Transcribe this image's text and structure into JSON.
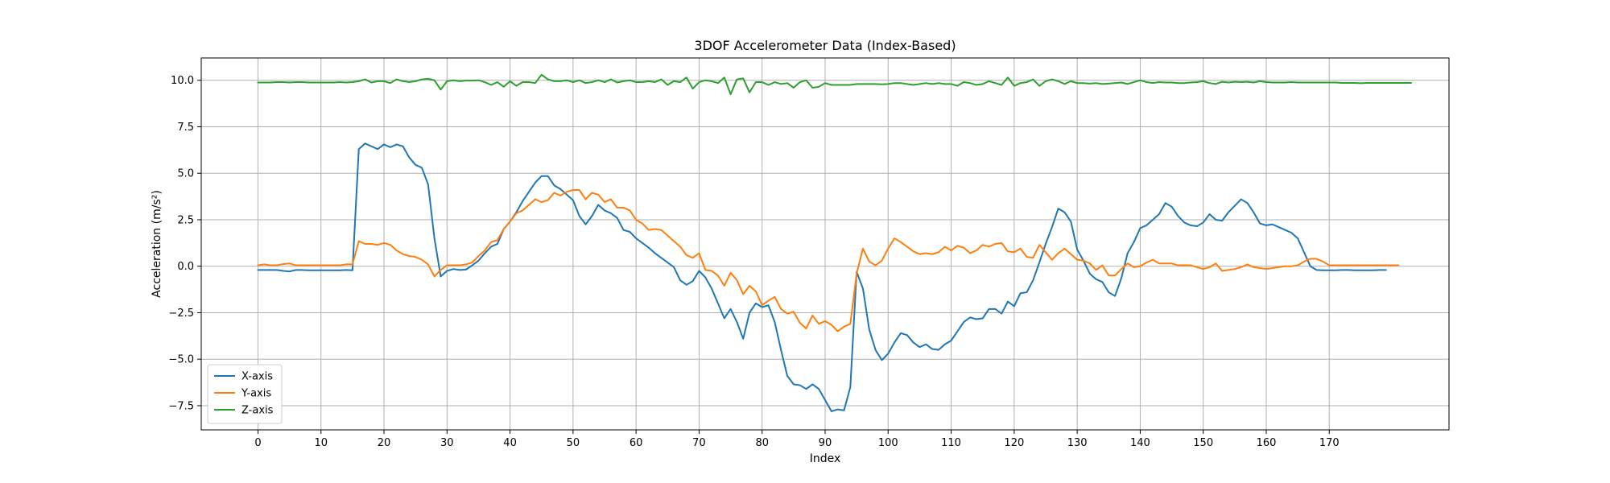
{
  "chart_data": {
    "type": "line",
    "title": "3DOF Accelerometer Data (Index-Based)",
    "xlabel": "Index",
    "ylabel": "Acceleration (m/s²)",
    "xlim": [
      -9,
      189
    ],
    "ylim": [
      -8.8,
      11.2
    ],
    "xticks": [
      0,
      10,
      20,
      30,
      40,
      50,
      60,
      70,
      80,
      90,
      100,
      110,
      120,
      130,
      140,
      150,
      160,
      170
    ],
    "yticks": [
      -7.5,
      -5.0,
      -2.5,
      0.0,
      2.5,
      5.0,
      7.5,
      10.0
    ],
    "ytick_labels": [
      "−7.5",
      "−5.0",
      "−2.5",
      "0.0",
      "2.5",
      "5.0",
      "7.5",
      "10.0"
    ],
    "grid": true,
    "legend_position": "lower-left",
    "series": [
      {
        "name": "X-axis",
        "color": "#1f77b4",
        "values": [
          -0.2,
          -0.2,
          -0.2,
          -0.2,
          -0.25,
          -0.28,
          -0.2,
          -0.2,
          -0.22,
          -0.22,
          -0.22,
          -0.22,
          -0.22,
          -0.22,
          -0.2,
          -0.22,
          6.3,
          6.6,
          6.45,
          6.3,
          6.55,
          6.4,
          6.55,
          6.45,
          5.85,
          5.45,
          5.3,
          4.4,
          1.5,
          -0.55,
          -0.25,
          -0.15,
          -0.2,
          -0.18,
          0.05,
          0.3,
          0.7,
          1.05,
          1.2,
          2.0,
          2.4,
          2.9,
          3.5,
          4.0,
          4.5,
          4.85,
          4.85,
          4.35,
          4.15,
          3.85,
          3.55,
          2.7,
          2.25,
          2.7,
          3.3,
          3.0,
          2.85,
          2.6,
          1.95,
          1.85,
          1.5,
          1.25,
          1.0,
          0.7,
          0.45,
          0.2,
          -0.05,
          -0.75,
          -1.0,
          -0.8,
          -0.25,
          -0.6,
          -1.2,
          -2.0,
          -2.8,
          -2.3,
          -3.0,
          -3.9,
          -2.5,
          -2.0,
          -2.2,
          -2.1,
          -3.0,
          -4.5,
          -5.9,
          -6.35,
          -6.4,
          -6.6,
          -6.35,
          -6.6,
          -7.2,
          -7.8,
          -7.7,
          -7.75,
          -6.5,
          -0.3,
          -1.2,
          -3.4,
          -4.5,
          -5.05,
          -4.7,
          -4.1,
          -3.6,
          -3.7,
          -4.1,
          -4.35,
          -4.2,
          -4.45,
          -4.5,
          -4.2,
          -4.0,
          -3.5,
          -3.0,
          -2.75,
          -2.85,
          -2.8,
          -2.3,
          -2.3,
          -2.55,
          -1.9,
          -2.15,
          -1.45,
          -1.4,
          -0.75,
          0.2,
          1.2,
          2.1,
          3.1,
          2.9,
          2.4,
          0.9,
          0.3,
          -0.4,
          -0.7,
          -0.85,
          -1.4,
          -1.6,
          -0.65,
          0.7,
          1.3,
          2.05,
          2.2,
          2.5,
          2.8,
          3.4,
          3.2,
          2.7,
          2.35,
          2.2,
          2.15,
          2.35,
          2.8,
          2.5,
          2.45,
          2.9,
          3.25,
          3.6,
          3.4,
          2.9,
          2.3,
          2.2,
          2.25,
          2.1,
          1.95,
          1.8,
          1.5,
          0.75,
          0.0,
          -0.2,
          -0.22,
          -0.22,
          -0.22,
          -0.2,
          -0.2,
          -0.22,
          -0.22,
          -0.22,
          -0.22,
          -0.2,
          -0.2
        ]
      },
      {
        "name": "Y-axis",
        "color": "#ff7f0e",
        "values": [
          0.05,
          0.1,
          0.05,
          0.05,
          0.12,
          0.15,
          0.05,
          0.05,
          0.05,
          0.05,
          0.05,
          0.05,
          0.05,
          0.05,
          0.1,
          0.1,
          1.35,
          1.2,
          1.2,
          1.15,
          1.25,
          1.15,
          0.85,
          0.65,
          0.55,
          0.5,
          0.35,
          0.1,
          -0.55,
          -0.2,
          0.05,
          0.05,
          0.05,
          0.1,
          0.2,
          0.55,
          0.85,
          1.3,
          1.4,
          2.0,
          2.4,
          2.85,
          3.0,
          3.3,
          3.6,
          3.45,
          3.55,
          3.95,
          3.8,
          4.0,
          4.1,
          4.1,
          3.6,
          3.95,
          3.85,
          3.45,
          3.6,
          3.15,
          3.15,
          3.0,
          2.5,
          2.3,
          1.95,
          2.0,
          1.95,
          1.65,
          1.35,
          1.05,
          0.6,
          0.45,
          0.7,
          -0.2,
          -0.25,
          -0.5,
          -1.05,
          -0.35,
          -0.75,
          -1.5,
          -1.05,
          -1.35,
          -2.1,
          -1.85,
          -1.65,
          -2.3,
          -2.55,
          -2.45,
          -3.05,
          -3.35,
          -2.65,
          -3.1,
          -2.95,
          -3.15,
          -3.5,
          -3.25,
          -3.1,
          -0.4,
          0.95,
          0.25,
          0.05,
          0.3,
          0.95,
          1.5,
          1.3,
          1.05,
          0.8,
          0.65,
          0.7,
          0.65,
          0.75,
          1.05,
          0.85,
          1.1,
          1.0,
          0.7,
          0.85,
          1.15,
          1.05,
          1.2,
          1.25,
          0.8,
          0.75,
          0.95,
          0.5,
          0.45,
          1.15,
          0.75,
          0.35,
          0.7,
          0.95,
          0.65,
          0.35,
          0.3,
          0.15,
          -0.2,
          0.05,
          -0.5,
          -0.5,
          -0.15,
          0.15,
          -0.05,
          0.0,
          0.2,
          0.35,
          0.15,
          0.15,
          0.15,
          0.05,
          0.05,
          0.05,
          -0.05,
          -0.15,
          -0.05,
          0.15,
          -0.25,
          -0.2,
          -0.15,
          -0.05,
          0.1,
          -0.05,
          -0.1,
          -0.15,
          -0.1,
          -0.05,
          0.0,
          0.0,
          0.05,
          0.25,
          0.4,
          0.4,
          0.25,
          0.05,
          0.05,
          0.05,
          0.05,
          0.05,
          0.05,
          0.05,
          0.05,
          0.05,
          0.05,
          0.05,
          0.05
        ]
      },
      {
        "name": "Z-axis",
        "color": "#2ca02c",
        "values": [
          9.88,
          9.88,
          9.88,
          9.9,
          9.9,
          9.88,
          9.9,
          9.9,
          9.88,
          9.88,
          9.88,
          9.88,
          9.88,
          9.9,
          9.88,
          9.9,
          9.95,
          10.05,
          9.88,
          9.95,
          9.95,
          9.85,
          10.05,
          9.95,
          9.9,
          9.95,
          10.05,
          10.08,
          10.0,
          9.5,
          9.95,
          10.0,
          9.95,
          9.98,
          9.98,
          10.0,
          9.9,
          9.75,
          9.9,
          9.65,
          9.95,
          9.7,
          9.9,
          9.9,
          9.85,
          10.3,
          10.05,
          9.95,
          9.95,
          10.0,
          9.9,
          10.0,
          9.85,
          9.9,
          10.0,
          9.9,
          10.05,
          9.88,
          9.95,
          10.0,
          9.9,
          9.9,
          9.95,
          9.9,
          10.05,
          9.75,
          9.95,
          9.9,
          10.15,
          9.55,
          9.9,
          10.0,
          9.95,
          9.85,
          10.15,
          9.25,
          10.05,
          10.1,
          9.35,
          9.9,
          9.9,
          9.75,
          9.9,
          9.8,
          9.85,
          9.6,
          9.9,
          10.0,
          9.6,
          9.65,
          9.85,
          9.75,
          9.75,
          9.75,
          9.75,
          9.8,
          9.8,
          9.8,
          9.8,
          9.78,
          9.8,
          9.85,
          9.85,
          9.8,
          9.75,
          9.8,
          9.85,
          9.8,
          9.85,
          9.8,
          9.8,
          9.7,
          9.9,
          9.85,
          9.75,
          9.8,
          9.95,
          9.85,
          9.75,
          10.15,
          9.7,
          9.85,
          9.9,
          10.05,
          9.7,
          9.95,
          10.05,
          9.95,
          9.8,
          9.95,
          9.85,
          9.85,
          9.82,
          9.85,
          9.8,
          9.82,
          9.85,
          9.88,
          9.8,
          9.9,
          10.0,
          9.9,
          9.85,
          9.9,
          9.88,
          9.88,
          9.85,
          9.85,
          9.88,
          9.9,
          9.95,
          9.85,
          9.8,
          9.92,
          9.88,
          9.92,
          9.9,
          9.92,
          9.88,
          9.95,
          9.9,
          9.88,
          9.88,
          9.88,
          9.9,
          9.88,
          9.88,
          9.88,
          9.88,
          9.88,
          9.88,
          9.88,
          9.86,
          9.86,
          9.86,
          9.84,
          9.86,
          9.86,
          9.86,
          9.86,
          9.86,
          9.86,
          9.86,
          9.86
        ]
      }
    ]
  }
}
